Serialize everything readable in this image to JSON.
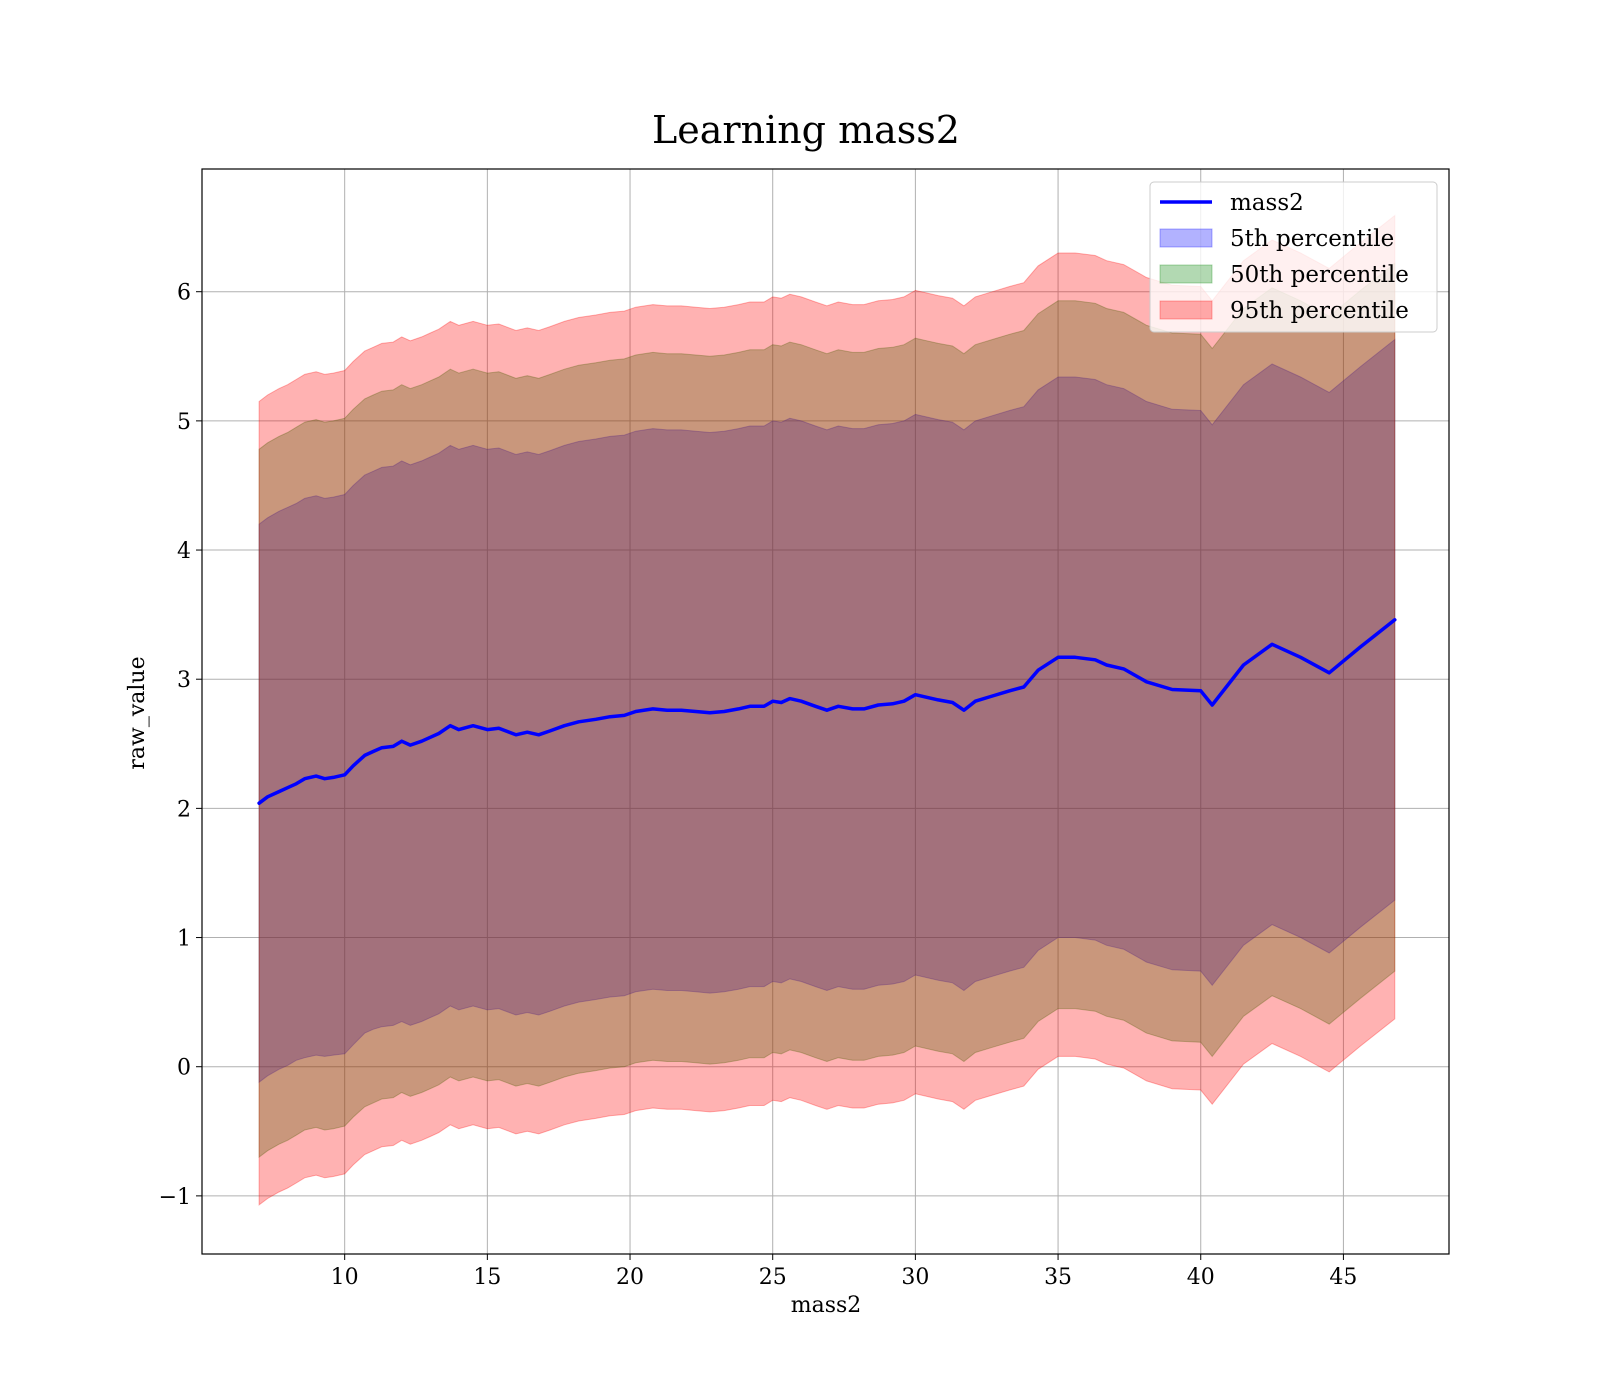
{
  "chart_data": {
    "type": "line",
    "title": "Learning mass2",
    "xlabel": "mass2",
    "ylabel": "raw_value",
    "xlim": [
      5.0,
      48.7
    ],
    "ylim": [
      -1.45,
      6.95
    ],
    "xticks": [
      10,
      15,
      20,
      25,
      30,
      35,
      40,
      45
    ],
    "yticks": [
      -1,
      0,
      1,
      2,
      3,
      4,
      5,
      6
    ],
    "grid": true,
    "legend_position": "top-right",
    "x": [
      7.0,
      7.3,
      7.7,
      8.0,
      8.3,
      8.6,
      9.0,
      9.3,
      9.6,
      10.0,
      10.3,
      10.7,
      11.0,
      11.3,
      11.7,
      12.0,
      12.3,
      12.7,
      13.0,
      13.3,
      13.7,
      14.0,
      14.5,
      15.0,
      15.4,
      16.0,
      16.4,
      16.8,
      17.2,
      17.7,
      18.2,
      18.8,
      19.3,
      19.8,
      20.2,
      20.8,
      21.3,
      21.8,
      22.3,
      22.8,
      23.3,
      23.8,
      24.2,
      24.7,
      25.0,
      25.3,
      25.6,
      26.0,
      26.5,
      26.9,
      27.3,
      27.8,
      28.2,
      28.7,
      29.2,
      29.6,
      30.0,
      30.4,
      30.8,
      31.3,
      31.7,
      32.1,
      32.7,
      33.3,
      33.8,
      34.3,
      35.0,
      35.6,
      36.3,
      36.7,
      37.3,
      38.1,
      39.0,
      40.0,
      40.4,
      41.5,
      42.5,
      43.5,
      44.5,
      45.6,
      46.8
    ],
    "series": [
      {
        "name": "mass2",
        "color": "#0000ff",
        "y": [
          2.04,
          2.09,
          2.13,
          2.16,
          2.19,
          2.23,
          2.25,
          2.23,
          2.24,
          2.26,
          2.33,
          2.41,
          2.44,
          2.47,
          2.48,
          2.52,
          2.49,
          2.52,
          2.55,
          2.58,
          2.64,
          2.61,
          2.64,
          2.61,
          2.62,
          2.57,
          2.59,
          2.57,
          2.6,
          2.64,
          2.67,
          2.69,
          2.71,
          2.72,
          2.75,
          2.77,
          2.76,
          2.76,
          2.75,
          2.74,
          2.75,
          2.77,
          2.79,
          2.79,
          2.83,
          2.82,
          2.85,
          2.83,
          2.79,
          2.76,
          2.79,
          2.77,
          2.77,
          2.8,
          2.81,
          2.83,
          2.88,
          2.86,
          2.84,
          2.82,
          2.76,
          2.83,
          2.87,
          2.91,
          2.94,
          3.07,
          3.17,
          3.17,
          3.15,
          3.11,
          3.08,
          2.98,
          2.92,
          2.91,
          2.8,
          3.11,
          3.27,
          3.17,
          3.05,
          3.25,
          3.46
        ]
      }
    ],
    "bands": [
      {
        "name": "5th percentile",
        "color": "#0000ff",
        "lower": [
          -0.12,
          -0.07,
          -0.02,
          0.01,
          0.05,
          0.07,
          0.09,
          0.08,
          0.09,
          0.1,
          0.17,
          0.26,
          0.29,
          0.31,
          0.32,
          0.35,
          0.32,
          0.35,
          0.38,
          0.41,
          0.47,
          0.44,
          0.47,
          0.44,
          0.45,
          0.4,
          0.42,
          0.4,
          0.43,
          0.47,
          0.5,
          0.52,
          0.54,
          0.55,
          0.58,
          0.6,
          0.59,
          0.59,
          0.58,
          0.57,
          0.58,
          0.6,
          0.62,
          0.62,
          0.66,
          0.65,
          0.68,
          0.66,
          0.62,
          0.59,
          0.62,
          0.6,
          0.6,
          0.63,
          0.64,
          0.66,
          0.71,
          0.69,
          0.67,
          0.65,
          0.59,
          0.66,
          0.7,
          0.74,
          0.77,
          0.9,
          1.0,
          1.0,
          0.98,
          0.94,
          0.91,
          0.81,
          0.75,
          0.74,
          0.63,
          0.94,
          1.1,
          1.0,
          0.88,
          1.08,
          1.29
        ],
        "upper": [
          4.2,
          4.25,
          4.3,
          4.33,
          4.36,
          4.4,
          4.42,
          4.4,
          4.41,
          4.43,
          4.5,
          4.58,
          4.61,
          4.64,
          4.65,
          4.69,
          4.66,
          4.69,
          4.72,
          4.75,
          4.81,
          4.78,
          4.81,
          4.78,
          4.79,
          4.74,
          4.76,
          4.74,
          4.77,
          4.81,
          4.84,
          4.86,
          4.88,
          4.89,
          4.92,
          4.94,
          4.93,
          4.93,
          4.92,
          4.91,
          4.92,
          4.94,
          4.96,
          4.96,
          5.0,
          4.99,
          5.02,
          5.0,
          4.96,
          4.93,
          4.96,
          4.94,
          4.94,
          4.97,
          4.98,
          5.0,
          5.05,
          5.03,
          5.01,
          4.99,
          4.93,
          5.0,
          5.04,
          5.08,
          5.11,
          5.24,
          5.34,
          5.34,
          5.32,
          5.28,
          5.25,
          5.15,
          5.09,
          5.08,
          4.97,
          5.28,
          5.44,
          5.34,
          5.22,
          5.42,
          5.63
        ]
      },
      {
        "name": "50th percentile",
        "color": "#008000",
        "lower": [
          -0.7,
          -0.65,
          -0.6,
          -0.57,
          -0.53,
          -0.49,
          -0.47,
          -0.49,
          -0.48,
          -0.46,
          -0.39,
          -0.31,
          -0.28,
          -0.25,
          -0.24,
          -0.2,
          -0.23,
          -0.2,
          -0.17,
          -0.14,
          -0.08,
          -0.11,
          -0.08,
          -0.11,
          -0.1,
          -0.15,
          -0.13,
          -0.15,
          -0.12,
          -0.08,
          -0.05,
          -0.03,
          -0.01,
          0.0,
          0.03,
          0.05,
          0.04,
          0.04,
          0.03,
          0.02,
          0.03,
          0.05,
          0.07,
          0.07,
          0.11,
          0.1,
          0.13,
          0.11,
          0.07,
          0.04,
          0.07,
          0.05,
          0.05,
          0.08,
          0.09,
          0.11,
          0.16,
          0.14,
          0.12,
          0.1,
          0.04,
          0.11,
          0.15,
          0.19,
          0.22,
          0.35,
          0.45,
          0.45,
          0.43,
          0.39,
          0.36,
          0.26,
          0.2,
          0.19,
          0.08,
          0.39,
          0.55,
          0.45,
          0.33,
          0.53,
          0.74
        ],
        "upper": [
          4.78,
          4.83,
          4.88,
          4.91,
          4.95,
          4.99,
          5.01,
          4.99,
          5.0,
          5.02,
          5.09,
          5.17,
          5.2,
          5.23,
          5.24,
          5.28,
          5.25,
          5.28,
          5.31,
          5.34,
          5.4,
          5.37,
          5.4,
          5.37,
          5.38,
          5.33,
          5.35,
          5.33,
          5.36,
          5.4,
          5.43,
          5.45,
          5.47,
          5.48,
          5.51,
          5.53,
          5.52,
          5.52,
          5.51,
          5.5,
          5.51,
          5.53,
          5.55,
          5.55,
          5.59,
          5.58,
          5.61,
          5.59,
          5.55,
          5.52,
          5.55,
          5.53,
          5.53,
          5.56,
          5.57,
          5.59,
          5.64,
          5.62,
          5.6,
          5.58,
          5.52,
          5.59,
          5.63,
          5.67,
          5.7,
          5.83,
          5.93,
          5.93,
          5.91,
          5.87,
          5.84,
          5.74,
          5.68,
          5.67,
          5.56,
          5.87,
          6.03,
          5.93,
          5.81,
          6.01,
          6.22
        ]
      },
      {
        "name": "95th percentile",
        "color": "#ff0000",
        "lower": [
          -1.07,
          -1.02,
          -0.97,
          -0.94,
          -0.9,
          -0.86,
          -0.84,
          -0.86,
          -0.85,
          -0.83,
          -0.76,
          -0.68,
          -0.65,
          -0.62,
          -0.61,
          -0.57,
          -0.6,
          -0.57,
          -0.54,
          -0.51,
          -0.45,
          -0.48,
          -0.45,
          -0.48,
          -0.47,
          -0.52,
          -0.5,
          -0.52,
          -0.49,
          -0.45,
          -0.42,
          -0.4,
          -0.38,
          -0.37,
          -0.34,
          -0.32,
          -0.33,
          -0.33,
          -0.34,
          -0.35,
          -0.34,
          -0.32,
          -0.3,
          -0.3,
          -0.26,
          -0.27,
          -0.24,
          -0.26,
          -0.3,
          -0.33,
          -0.3,
          -0.32,
          -0.32,
          -0.29,
          -0.28,
          -0.26,
          -0.21,
          -0.23,
          -0.25,
          -0.27,
          -0.33,
          -0.26,
          -0.22,
          -0.18,
          -0.15,
          -0.02,
          0.08,
          0.08,
          0.06,
          0.02,
          -0.01,
          -0.11,
          -0.17,
          -0.18,
          -0.29,
          0.02,
          0.18,
          0.08,
          -0.04,
          0.16,
          0.37
        ],
        "upper": [
          5.15,
          5.2,
          5.25,
          5.28,
          5.32,
          5.36,
          5.38,
          5.36,
          5.37,
          5.39,
          5.46,
          5.54,
          5.57,
          5.6,
          5.61,
          5.65,
          5.62,
          5.65,
          5.68,
          5.71,
          5.77,
          5.74,
          5.77,
          5.74,
          5.75,
          5.7,
          5.72,
          5.7,
          5.73,
          5.77,
          5.8,
          5.82,
          5.84,
          5.85,
          5.88,
          5.9,
          5.89,
          5.89,
          5.88,
          5.87,
          5.88,
          5.9,
          5.92,
          5.92,
          5.96,
          5.95,
          5.98,
          5.96,
          5.92,
          5.89,
          5.92,
          5.9,
          5.9,
          5.93,
          5.94,
          5.96,
          6.01,
          5.99,
          5.97,
          5.95,
          5.89,
          5.96,
          6.0,
          6.04,
          6.07,
          6.2,
          6.3,
          6.3,
          6.28,
          6.24,
          6.21,
          6.11,
          6.05,
          6.04,
          5.93,
          6.24,
          6.4,
          6.3,
          6.18,
          6.38,
          6.59
        ]
      }
    ],
    "legend": [
      "mass2",
      "5th percentile",
      "50th percentile",
      "95th percentile"
    ]
  }
}
